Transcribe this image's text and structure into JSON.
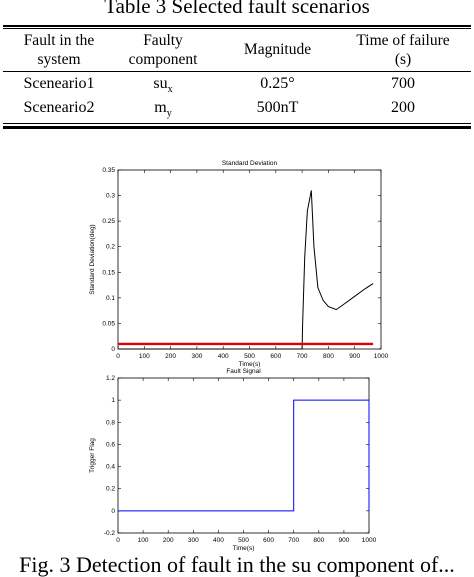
{
  "table": {
    "caption": "Table 3 Selected fault scenarios",
    "headers": [
      [
        "Fault in the",
        "system"
      ],
      [
        "Faulty",
        "component"
      ],
      [
        "Magnitude"
      ],
      [
        "Time of failure",
        "(s)"
      ]
    ],
    "rows": [
      {
        "fault": "Sceneario1",
        "component_base": "su",
        "component_sub": "x",
        "magnitude": "0.25°",
        "time": "700"
      },
      {
        "fault": "Sceneario2",
        "component_base": "m",
        "component_sub": "y",
        "magnitude": "500nT",
        "time": "200"
      }
    ]
  },
  "chart_data": [
    {
      "type": "line",
      "title": "Standard Deviation",
      "xlabel": "Time(s)",
      "ylabel": "Standard Deviation(deg)",
      "xlim": [
        0,
        1000
      ],
      "ylim": [
        0,
        0.35
      ],
      "xticks": [
        "0",
        "100",
        "200",
        "300",
        "400",
        "500",
        "600",
        "700",
        "800",
        "900",
        "1000"
      ],
      "yticks": [
        "0",
        "0.05",
        "0.1",
        "0.15",
        "0.2",
        "0.25",
        "0.3",
        "0.35"
      ],
      "series": [
        {
          "color": "#000000",
          "x": [
            0,
            700,
            702,
            710,
            720,
            735,
            745,
            760,
            780,
            800,
            830,
            860,
            900,
            940,
            970
          ],
          "y": [
            0,
            0,
            0.05,
            0.18,
            0.27,
            0.31,
            0.2,
            0.12,
            0.095,
            0.083,
            0.077,
            0.088,
            0.103,
            0.118,
            0.128
          ]
        },
        {
          "color": "#e00000",
          "x": [
            0,
            970
          ],
          "y": [
            0.01,
            0.01
          ]
        }
      ]
    },
    {
      "type": "line",
      "title": "Fault Signal",
      "xlabel": "Time(s)",
      "ylabel": "Trigger Flag",
      "xlim": [
        0,
        1000
      ],
      "ylim": [
        -0.2,
        1.2
      ],
      "xticks": [
        "0",
        "100",
        "200",
        "300",
        "400",
        "500",
        "600",
        "700",
        "800",
        "900",
        "1000"
      ],
      "yticks": [
        "-0.2",
        "0",
        "0.2",
        "0.4",
        "0.6",
        "0.8",
        "1",
        "1.2"
      ],
      "series": [
        {
          "color": "#0000ff",
          "x": [
            0,
            700,
            700,
            1000,
            1000
          ],
          "y": [
            0,
            0,
            1,
            1,
            0
          ]
        }
      ]
    }
  ],
  "figure": {
    "caption": "Fig. 3 Detection of fault in the su component of..."
  }
}
